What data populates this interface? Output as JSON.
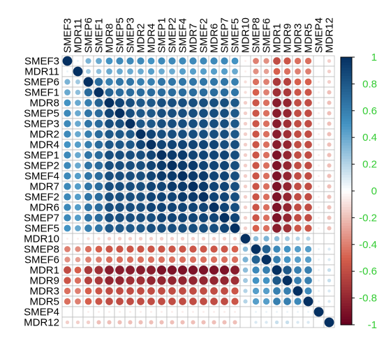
{
  "chart_data": {
    "type": "heatmap",
    "variables": [
      "SMEF3",
      "MDR11",
      "SMEP6",
      "SMEF1",
      "MDR8",
      "SMEP5",
      "SMEP3",
      "MDR2",
      "MDR4",
      "SMEP1",
      "SMEP2",
      "SMEF4",
      "MDR7",
      "SMEF2",
      "MDR6",
      "SMEP7",
      "SMEF5",
      "MDR10",
      "SMEP8",
      "SMEF6",
      "MDR1",
      "MDR9",
      "MDR3",
      "MDR5",
      "SMEP4",
      "MDR12"
    ],
    "values": [
      [
        1.0,
        0.05,
        0.35,
        0.4,
        0.5,
        0.55,
        0.55,
        0.55,
        0.5,
        0.55,
        0.55,
        0.55,
        0.55,
        0.55,
        0.55,
        0.55,
        0.5,
        -0.05,
        -0.4,
        -0.35,
        -0.6,
        -0.55,
        -0.45,
        -0.45,
        0.0,
        -0.15
      ],
      [
        0.05,
        1.0,
        0.25,
        0.3,
        0.4,
        0.4,
        0.4,
        0.4,
        0.45,
        0.4,
        0.4,
        0.45,
        0.45,
        0.45,
        0.45,
        0.45,
        0.4,
        -0.05,
        -0.35,
        -0.3,
        -0.5,
        -0.45,
        -0.4,
        -0.4,
        0.0,
        -0.15
      ],
      [
        0.35,
        0.25,
        1.0,
        0.7,
        0.6,
        0.65,
        0.65,
        0.6,
        0.6,
        0.65,
        0.65,
        0.65,
        0.65,
        0.65,
        0.65,
        0.65,
        0.6,
        -0.1,
        -0.45,
        -0.4,
        -0.7,
        -0.65,
        -0.5,
        -0.5,
        -0.05,
        -0.15
      ],
      [
        0.4,
        0.3,
        0.7,
        1.0,
        0.75,
        0.7,
        0.7,
        0.7,
        0.7,
        0.7,
        0.7,
        0.7,
        0.7,
        0.7,
        0.7,
        0.7,
        0.65,
        -0.1,
        -0.5,
        -0.4,
        -0.75,
        -0.7,
        -0.55,
        -0.55,
        -0.05,
        -0.2
      ],
      [
        0.5,
        0.4,
        0.6,
        0.75,
        1.0,
        0.9,
        0.85,
        0.8,
        0.8,
        0.85,
        0.85,
        0.85,
        0.85,
        0.85,
        0.85,
        0.85,
        0.8,
        -0.15,
        -0.55,
        -0.45,
        -0.85,
        -0.8,
        -0.6,
        -0.6,
        -0.05,
        -0.2
      ],
      [
        0.55,
        0.4,
        0.65,
        0.7,
        0.9,
        1.0,
        0.85,
        0.8,
        0.8,
        0.85,
        0.85,
        0.85,
        0.85,
        0.85,
        0.85,
        0.85,
        0.8,
        -0.15,
        -0.55,
        -0.45,
        -0.85,
        -0.8,
        -0.6,
        -0.6,
        -0.05,
        -0.2
      ],
      [
        0.55,
        0.4,
        0.65,
        0.7,
        0.85,
        0.85,
        1.0,
        0.8,
        0.8,
        0.85,
        0.85,
        0.85,
        0.85,
        0.85,
        0.85,
        0.85,
        0.8,
        -0.15,
        -0.55,
        -0.45,
        -0.85,
        -0.75,
        -0.6,
        -0.6,
        -0.05,
        -0.2
      ],
      [
        0.55,
        0.4,
        0.6,
        0.7,
        0.8,
        0.8,
        0.8,
        1.0,
        0.9,
        0.85,
        0.85,
        0.85,
        0.85,
        0.85,
        0.85,
        0.85,
        0.8,
        -0.15,
        -0.55,
        -0.45,
        -0.85,
        -0.75,
        -0.6,
        -0.6,
        -0.05,
        -0.2
      ],
      [
        0.5,
        0.45,
        0.6,
        0.7,
        0.8,
        0.8,
        0.8,
        0.9,
        1.0,
        0.9,
        0.9,
        0.9,
        0.9,
        0.9,
        0.9,
        0.85,
        0.85,
        -0.15,
        -0.55,
        -0.45,
        -0.85,
        -0.8,
        -0.6,
        -0.6,
        -0.05,
        -0.2
      ],
      [
        0.55,
        0.4,
        0.65,
        0.7,
        0.85,
        0.85,
        0.85,
        0.85,
        0.9,
        1.0,
        0.95,
        0.95,
        0.9,
        0.9,
        0.9,
        0.9,
        0.85,
        -0.15,
        -0.55,
        -0.45,
        -0.9,
        -0.8,
        -0.6,
        -0.6,
        -0.05,
        -0.2
      ],
      [
        0.55,
        0.4,
        0.65,
        0.7,
        0.85,
        0.85,
        0.85,
        0.85,
        0.9,
        0.95,
        1.0,
        0.95,
        0.95,
        0.9,
        0.9,
        0.9,
        0.85,
        -0.15,
        -0.55,
        -0.45,
        -0.9,
        -0.8,
        -0.6,
        -0.6,
        -0.05,
        -0.2
      ],
      [
        0.55,
        0.45,
        0.65,
        0.7,
        0.85,
        0.85,
        0.85,
        0.85,
        0.9,
        0.95,
        0.95,
        1.0,
        0.95,
        0.95,
        0.9,
        0.9,
        0.85,
        -0.15,
        -0.55,
        -0.45,
        -0.9,
        -0.8,
        -0.6,
        -0.6,
        -0.05,
        -0.2
      ],
      [
        0.55,
        0.45,
        0.65,
        0.7,
        0.85,
        0.85,
        0.85,
        0.85,
        0.9,
        0.9,
        0.95,
        0.95,
        1.0,
        0.95,
        0.9,
        0.9,
        0.85,
        -0.15,
        -0.55,
        -0.45,
        -0.9,
        -0.8,
        -0.6,
        -0.6,
        -0.05,
        -0.2
      ],
      [
        0.55,
        0.45,
        0.65,
        0.7,
        0.85,
        0.85,
        0.85,
        0.85,
        0.9,
        0.9,
        0.9,
        0.95,
        0.95,
        1.0,
        0.9,
        0.9,
        0.85,
        -0.15,
        -0.55,
        -0.45,
        -0.9,
        -0.8,
        -0.6,
        -0.6,
        -0.05,
        -0.2
      ],
      [
        0.55,
        0.45,
        0.65,
        0.7,
        0.85,
        0.85,
        0.85,
        0.85,
        0.9,
        0.9,
        0.9,
        0.9,
        0.9,
        0.9,
        1.0,
        0.9,
        0.85,
        -0.15,
        -0.55,
        -0.45,
        -0.9,
        -0.8,
        -0.6,
        -0.6,
        -0.05,
        -0.2
      ],
      [
        0.55,
        0.45,
        0.65,
        0.7,
        0.85,
        0.85,
        0.85,
        0.85,
        0.85,
        0.9,
        0.9,
        0.9,
        0.9,
        0.9,
        0.9,
        1.0,
        0.9,
        -0.15,
        -0.55,
        -0.45,
        -0.9,
        -0.8,
        -0.6,
        -0.6,
        -0.05,
        -0.2
      ],
      [
        0.5,
        0.4,
        0.6,
        0.65,
        0.8,
        0.8,
        0.8,
        0.8,
        0.85,
        0.85,
        0.85,
        0.85,
        0.85,
        0.85,
        0.85,
        0.9,
        1.0,
        -0.15,
        -0.5,
        -0.45,
        -0.85,
        -0.75,
        -0.55,
        -0.55,
        -0.05,
        -0.2
      ],
      [
        -0.05,
        -0.05,
        -0.1,
        -0.1,
        -0.15,
        -0.15,
        -0.15,
        -0.15,
        -0.15,
        -0.15,
        -0.15,
        -0.15,
        -0.15,
        -0.15,
        -0.15,
        -0.15,
        -0.15,
        1.0,
        0.3,
        0.35,
        0.3,
        0.25,
        0.2,
        0.2,
        0.0,
        0.0
      ],
      [
        -0.4,
        -0.35,
        -0.45,
        -0.5,
        -0.55,
        -0.55,
        -0.55,
        -0.55,
        -0.55,
        -0.55,
        -0.55,
        -0.55,
        -0.55,
        -0.55,
        -0.55,
        -0.55,
        -0.5,
        0.3,
        1.0,
        0.75,
        0.55,
        0.5,
        0.45,
        0.45,
        0.05,
        0.1
      ],
      [
        -0.35,
        -0.3,
        -0.4,
        -0.4,
        -0.45,
        -0.45,
        -0.45,
        -0.45,
        -0.45,
        -0.45,
        -0.45,
        -0.45,
        -0.45,
        -0.45,
        -0.45,
        -0.45,
        -0.45,
        0.35,
        0.75,
        1.0,
        0.6,
        0.5,
        0.45,
        0.45,
        0.05,
        0.1
      ],
      [
        -0.6,
        -0.5,
        -0.7,
        -0.75,
        -0.85,
        -0.85,
        -0.85,
        -0.85,
        -0.85,
        -0.9,
        -0.9,
        -0.9,
        -0.9,
        -0.9,
        -0.9,
        -0.9,
        -0.85,
        0.3,
        0.55,
        0.6,
        1.0,
        0.8,
        0.6,
        0.6,
        0.05,
        0.15
      ],
      [
        -0.55,
        -0.45,
        -0.65,
        -0.7,
        -0.8,
        -0.8,
        -0.75,
        -0.75,
        -0.8,
        -0.8,
        -0.8,
        -0.8,
        -0.8,
        -0.8,
        -0.8,
        -0.8,
        -0.75,
        0.25,
        0.5,
        0.5,
        0.8,
        1.0,
        0.6,
        0.6,
        0.05,
        0.15
      ],
      [
        -0.45,
        -0.4,
        -0.5,
        -0.55,
        -0.6,
        -0.6,
        -0.6,
        -0.6,
        -0.6,
        -0.6,
        -0.6,
        -0.6,
        -0.6,
        -0.6,
        -0.6,
        -0.6,
        -0.55,
        0.2,
        0.45,
        0.45,
        0.6,
        0.6,
        1.0,
        0.55,
        0.05,
        0.1
      ],
      [
        -0.45,
        -0.4,
        -0.5,
        -0.55,
        -0.6,
        -0.6,
        -0.6,
        -0.6,
        -0.6,
        -0.6,
        -0.6,
        -0.6,
        -0.6,
        -0.6,
        -0.6,
        -0.6,
        -0.55,
        0.2,
        0.45,
        0.45,
        0.6,
        0.6,
        0.55,
        1.0,
        0.05,
        0.1
      ],
      [
        0.0,
        0.0,
        -0.05,
        -0.05,
        -0.05,
        -0.05,
        -0.05,
        -0.05,
        -0.05,
        -0.05,
        -0.05,
        -0.05,
        -0.05,
        -0.05,
        -0.05,
        -0.05,
        -0.05,
        0.0,
        0.05,
        0.05,
        0.05,
        0.05,
        0.05,
        0.05,
        1.0,
        0.0
      ],
      [
        -0.15,
        -0.15,
        -0.15,
        -0.2,
        -0.2,
        -0.2,
        -0.2,
        -0.2,
        -0.2,
        -0.2,
        -0.2,
        -0.2,
        -0.2,
        -0.2,
        -0.2,
        -0.2,
        -0.2,
        0.0,
        0.1,
        0.1,
        0.15,
        0.15,
        0.1,
        0.1,
        0.0,
        1.0
      ]
    ],
    "colorbar": {
      "range": [
        -1,
        1
      ],
      "ticks": [
        "1",
        "0.8",
        "0.6",
        "0.4",
        "0.2",
        "0",
        "-0.2",
        "-0.4",
        "-0.6",
        "-0.8",
        "-1"
      ],
      "tick_color": "#33cc33"
    },
    "colors": {
      "negative_end": "#67001f",
      "neg_mid": "#d6604d",
      "neutral": "#ffffff",
      "pos_mid": "#4393c3",
      "positive_end": "#053061",
      "grid": "#bbbbbb"
    }
  }
}
